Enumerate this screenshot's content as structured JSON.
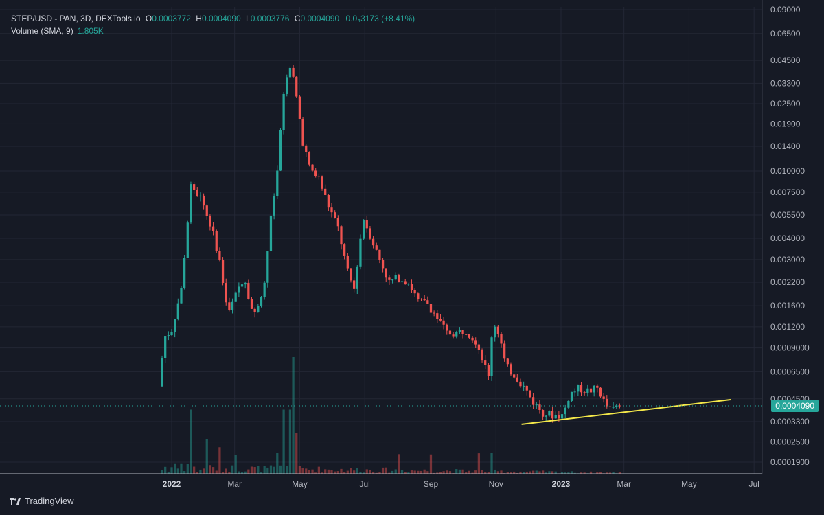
{
  "legend": {
    "symbol": "STEP/USD - PAN, 3D, DEXTools.io",
    "open_label": "O",
    "open": "0.0003772",
    "high_label": "H",
    "high": "0.0004090",
    "low_label": "L",
    "low": "0.0003776",
    "close_label": "C",
    "close": "0.0004090",
    "change": "0.0₄3173 (+8.41%)",
    "volume_label": "Volume (SMA, 9)",
    "volume_value": "1.805K"
  },
  "last_price": "0.0004090",
  "brand": "TradingView",
  "colors": {
    "up": "#26a69a",
    "down": "#ef5350",
    "trendline": "#f5e94a",
    "background": "#161a25",
    "grid": "#232735"
  },
  "chart_data": {
    "type": "candlestick",
    "interval": "3D",
    "y_scale": "log",
    "y_ticks": [
      "0.09000",
      "0.06500",
      "0.04500",
      "0.03300",
      "0.02500",
      "0.01900",
      "0.01400",
      "0.010000",
      "0.007500",
      "0.005500",
      "0.004000",
      "0.003000",
      "0.002200",
      "0.001600",
      "0.001200",
      "0.0009000",
      "0.0006500",
      "0.0004500",
      "0.0003300",
      "0.0002500",
      "0.0001900"
    ],
    "x_ticks": [
      "2022",
      "Mar",
      "May",
      "Jul",
      "Sep",
      "Nov",
      "2023",
      "Mar",
      "May",
      "Jul"
    ],
    "x_tick_dates": [
      "2022-01-01",
      "2022-03-01",
      "2022-05-01",
      "2022-07-01",
      "2022-09-01",
      "2022-11-01",
      "2023-01-01",
      "2023-03-01",
      "2023-05-01",
      "2023-07-01"
    ],
    "price_anchors": [
      {
        "date": "2021-12-23",
        "price": 0.00058
      },
      {
        "date": "2021-12-29",
        "price": 0.00105
      },
      {
        "date": "2022-01-04",
        "price": 0.00115
      },
      {
        "date": "2022-01-13",
        "price": 0.002
      },
      {
        "date": "2022-01-22",
        "price": 0.008
      },
      {
        "date": "2022-01-31",
        "price": 0.007
      },
      {
        "date": "2022-02-08",
        "price": 0.0052
      },
      {
        "date": "2022-02-17",
        "price": 0.0032
      },
      {
        "date": "2022-02-26",
        "price": 0.0014
      },
      {
        "date": "2022-03-07",
        "price": 0.002
      },
      {
        "date": "2022-03-13",
        "price": 0.0024
      },
      {
        "date": "2022-03-22",
        "price": 0.00135
      },
      {
        "date": "2022-04-01",
        "price": 0.0022
      },
      {
        "date": "2022-04-07",
        "price": 0.0052
      },
      {
        "date": "2022-04-13",
        "price": 0.01
      },
      {
        "date": "2022-04-19",
        "price": 0.028
      },
      {
        "date": "2022-04-25",
        "price": 0.043
      },
      {
        "date": "2022-05-01",
        "price": 0.027
      },
      {
        "date": "2022-05-07",
        "price": 0.015
      },
      {
        "date": "2022-05-13",
        "price": 0.0105
      },
      {
        "date": "2022-05-22",
        "price": 0.009
      },
      {
        "date": "2022-05-31",
        "price": 0.0062
      },
      {
        "date": "2022-06-09",
        "price": 0.0046
      },
      {
        "date": "2022-06-18",
        "price": 0.0025
      },
      {
        "date": "2022-06-24",
        "price": 0.002
      },
      {
        "date": "2022-06-30",
        "price": 0.004
      },
      {
        "date": "2022-07-03",
        "price": 0.0052
      },
      {
        "date": "2022-07-09",
        "price": 0.0042
      },
      {
        "date": "2022-07-18",
        "price": 0.003
      },
      {
        "date": "2022-07-27",
        "price": 0.0022
      },
      {
        "date": "2022-08-05",
        "price": 0.00235
      },
      {
        "date": "2022-08-14",
        "price": 0.0022
      },
      {
        "date": "2022-08-23",
        "price": 0.0017
      },
      {
        "date": "2022-09-01",
        "price": 0.00165
      },
      {
        "date": "2022-09-10",
        "price": 0.00135
      },
      {
        "date": "2022-09-19",
        "price": 0.0011
      },
      {
        "date": "2022-09-28",
        "price": 0.0011
      },
      {
        "date": "2022-10-07",
        "price": 0.00115
      },
      {
        "date": "2022-10-16",
        "price": 0.001
      },
      {
        "date": "2022-10-22",
        "price": 0.0008
      },
      {
        "date": "2022-10-28",
        "price": 0.0006
      },
      {
        "date": "2022-11-01",
        "price": 0.0013
      },
      {
        "date": "2022-11-07",
        "price": 0.0011
      },
      {
        "date": "2022-11-13",
        "price": 0.0007
      },
      {
        "date": "2022-11-22",
        "price": 0.00062
      },
      {
        "date": "2022-12-01",
        "price": 0.00052
      },
      {
        "date": "2022-12-10",
        "price": 0.00042
      },
      {
        "date": "2022-12-19",
        "price": 0.00037
      },
      {
        "date": "2022-12-28",
        "price": 0.00036
      },
      {
        "date": "2023-01-06",
        "price": 0.00036
      },
      {
        "date": "2023-01-12",
        "price": 0.00048
      },
      {
        "date": "2023-01-21",
        "price": 0.00052
      },
      {
        "date": "2023-01-30",
        "price": 0.0005
      },
      {
        "date": "2023-02-08",
        "price": 0.00052
      },
      {
        "date": "2023-02-14",
        "price": 0.00042
      },
      {
        "date": "2023-02-20",
        "price": 0.00038
      },
      {
        "date": "2023-02-26",
        "price": 0.00041
      }
    ],
    "volume_spikes": [
      {
        "date": "2022-01-19",
        "up": true,
        "volume": 0.55
      },
      {
        "date": "2022-04-16",
        "up": true,
        "volume": 0.55
      },
      {
        "date": "2022-04-22",
        "up": true,
        "volume": 0.55
      },
      {
        "date": "2022-04-25",
        "up": true,
        "volume": 1.0
      },
      {
        "date": "2022-04-28",
        "up": false,
        "volume": 0.35
      },
      {
        "date": "2022-02-02",
        "up": true,
        "volume": 0.3
      },
      {
        "date": "2022-04-10",
        "up": true,
        "volume": 0.18
      }
    ],
    "trendline": {
      "start": {
        "date": "2022-11-25",
        "price": 0.000318
      },
      "end": {
        "date": "2023-06-09",
        "price": 0.000445
      }
    },
    "last_price": 0.000409
  }
}
